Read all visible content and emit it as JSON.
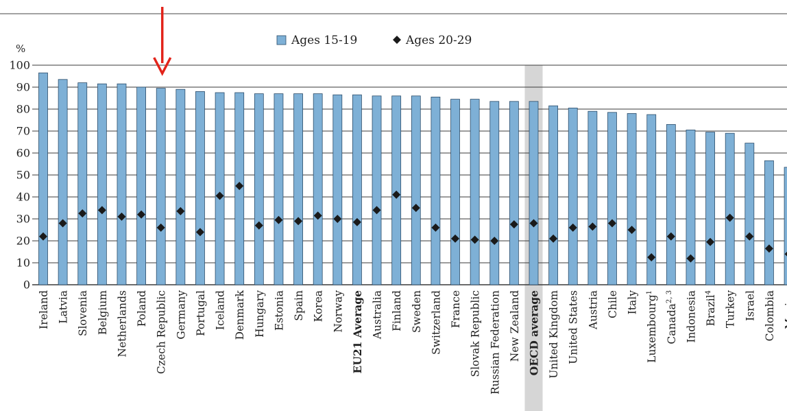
{
  "chart_data": {
    "type": "bar",
    "ylabel": "%",
    "ylim": [
      0,
      100
    ],
    "yticks": [
      "0",
      "10",
      "20",
      "30",
      "40",
      "50",
      "60",
      "70",
      "80",
      "90",
      "100"
    ],
    "grid": true,
    "legend_position": "top-center",
    "highlight_category": "OECD average",
    "highlight_bar": "Czech Republic",
    "categories": [
      "Ireland",
      "Latvia",
      "Slovenia",
      "Belgium",
      "Netherlands",
      "Poland",
      "Czech Republic",
      "Germany",
      "Portugal",
      "Iceland",
      "Denmark",
      "Hungary",
      "Estonia",
      "Spain",
      "Korea",
      "Norway",
      "EU21 Average",
      "Australia",
      "Finland",
      "Sweden",
      "Switzerland",
      "France",
      "Slovak Republic",
      "Russian Federation",
      "New Zealand",
      "OECD average",
      "United Kingdom",
      "United States",
      "Austria",
      "Chile",
      "Italy",
      "Luxembourg",
      "Canada",
      "Indonesia",
      "Brazil",
      "Turkey",
      "Israel",
      "Colombia",
      "Mexico"
    ],
    "category_notes": {
      "Luxembourg": "1",
      "Canada": "2, 3",
      "Brazil": "4"
    },
    "bold_categories": [
      "EU21 Average",
      "OECD average"
    ],
    "series": [
      {
        "name": "Ages 15-19",
        "marker": "bar",
        "values": [
          96.5,
          93.5,
          92,
          91.5,
          91.5,
          90,
          89.5,
          89,
          88,
          87.5,
          87.5,
          87,
          87,
          87,
          87,
          86.5,
          86.5,
          86,
          86,
          86,
          85.5,
          84.5,
          84.5,
          83.5,
          83.5,
          83.5,
          81.5,
          80.5,
          79,
          78.5,
          78,
          77.5,
          73,
          70.5,
          69.5,
          69,
          64.5,
          56.5,
          53.5
        ]
      },
      {
        "name": "Ages 20-29",
        "marker": "diamond",
        "values": [
          22,
          28,
          32.5,
          34,
          31,
          32,
          26,
          33.5,
          24,
          40.5,
          45,
          27,
          29.5,
          29,
          31.5,
          30,
          28.5,
          34,
          41,
          35,
          26,
          21,
          20.5,
          20,
          27.5,
          28,
          21,
          26,
          26.5,
          28,
          25,
          12.5,
          22,
          12,
          19.5,
          30.5,
          22,
          16.5,
          14
        ]
      }
    ],
    "colors": {
      "bar_fill": "#7eb0d6",
      "bar_stroke": "#2c4d6a",
      "marker": "#1a1a1a",
      "arrow": "#e2231a",
      "highlight": "#d6d6d6",
      "grid": "#3a3a3a"
    }
  }
}
